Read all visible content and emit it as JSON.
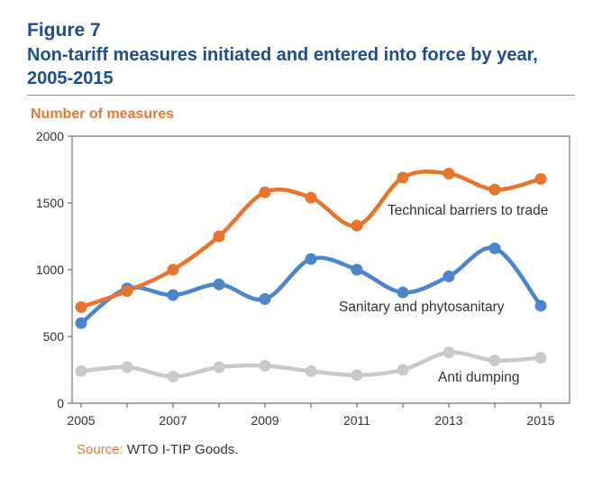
{
  "figure": {
    "label": "Figure 7",
    "title": "Non-tariff measures initiated and entered into force by year, 2005-2015",
    "source_key": "Source:",
    "source_text": " WTO I-TIP Goods."
  },
  "chart_data": {
    "type": "line",
    "ylabel": "Number of measures",
    "xlabel": "",
    "x": [
      2005,
      2006,
      2007,
      2008,
      2009,
      2010,
      2011,
      2012,
      2013,
      2014,
      2015
    ],
    "xticks": [
      2005,
      2007,
      2009,
      2011,
      2013,
      2015
    ],
    "yticks": [
      0,
      500,
      1000,
      1500,
      2000
    ],
    "xlim": [
      2005,
      2015.3
    ],
    "ylim": [
      0,
      2000
    ],
    "grid": false,
    "legend": "inline labels",
    "series": [
      {
        "name": "Technical barriers to trade",
        "color": "#e8752e",
        "values": [
          720,
          840,
          1000,
          1250,
          1580,
          1540,
          1330,
          1690,
          1720,
          1600,
          1680
        ]
      },
      {
        "name": "Sanitary and phytosanitary",
        "color": "#4a86c9",
        "values": [
          600,
          860,
          810,
          890,
          780,
          1080,
          1000,
          830,
          950,
          1160,
          730
        ]
      },
      {
        "name": "Anti dumping",
        "color": "#c9c9c9",
        "values": [
          240,
          270,
          200,
          270,
          280,
          240,
          210,
          250,
          380,
          320,
          340
        ]
      }
    ]
  }
}
